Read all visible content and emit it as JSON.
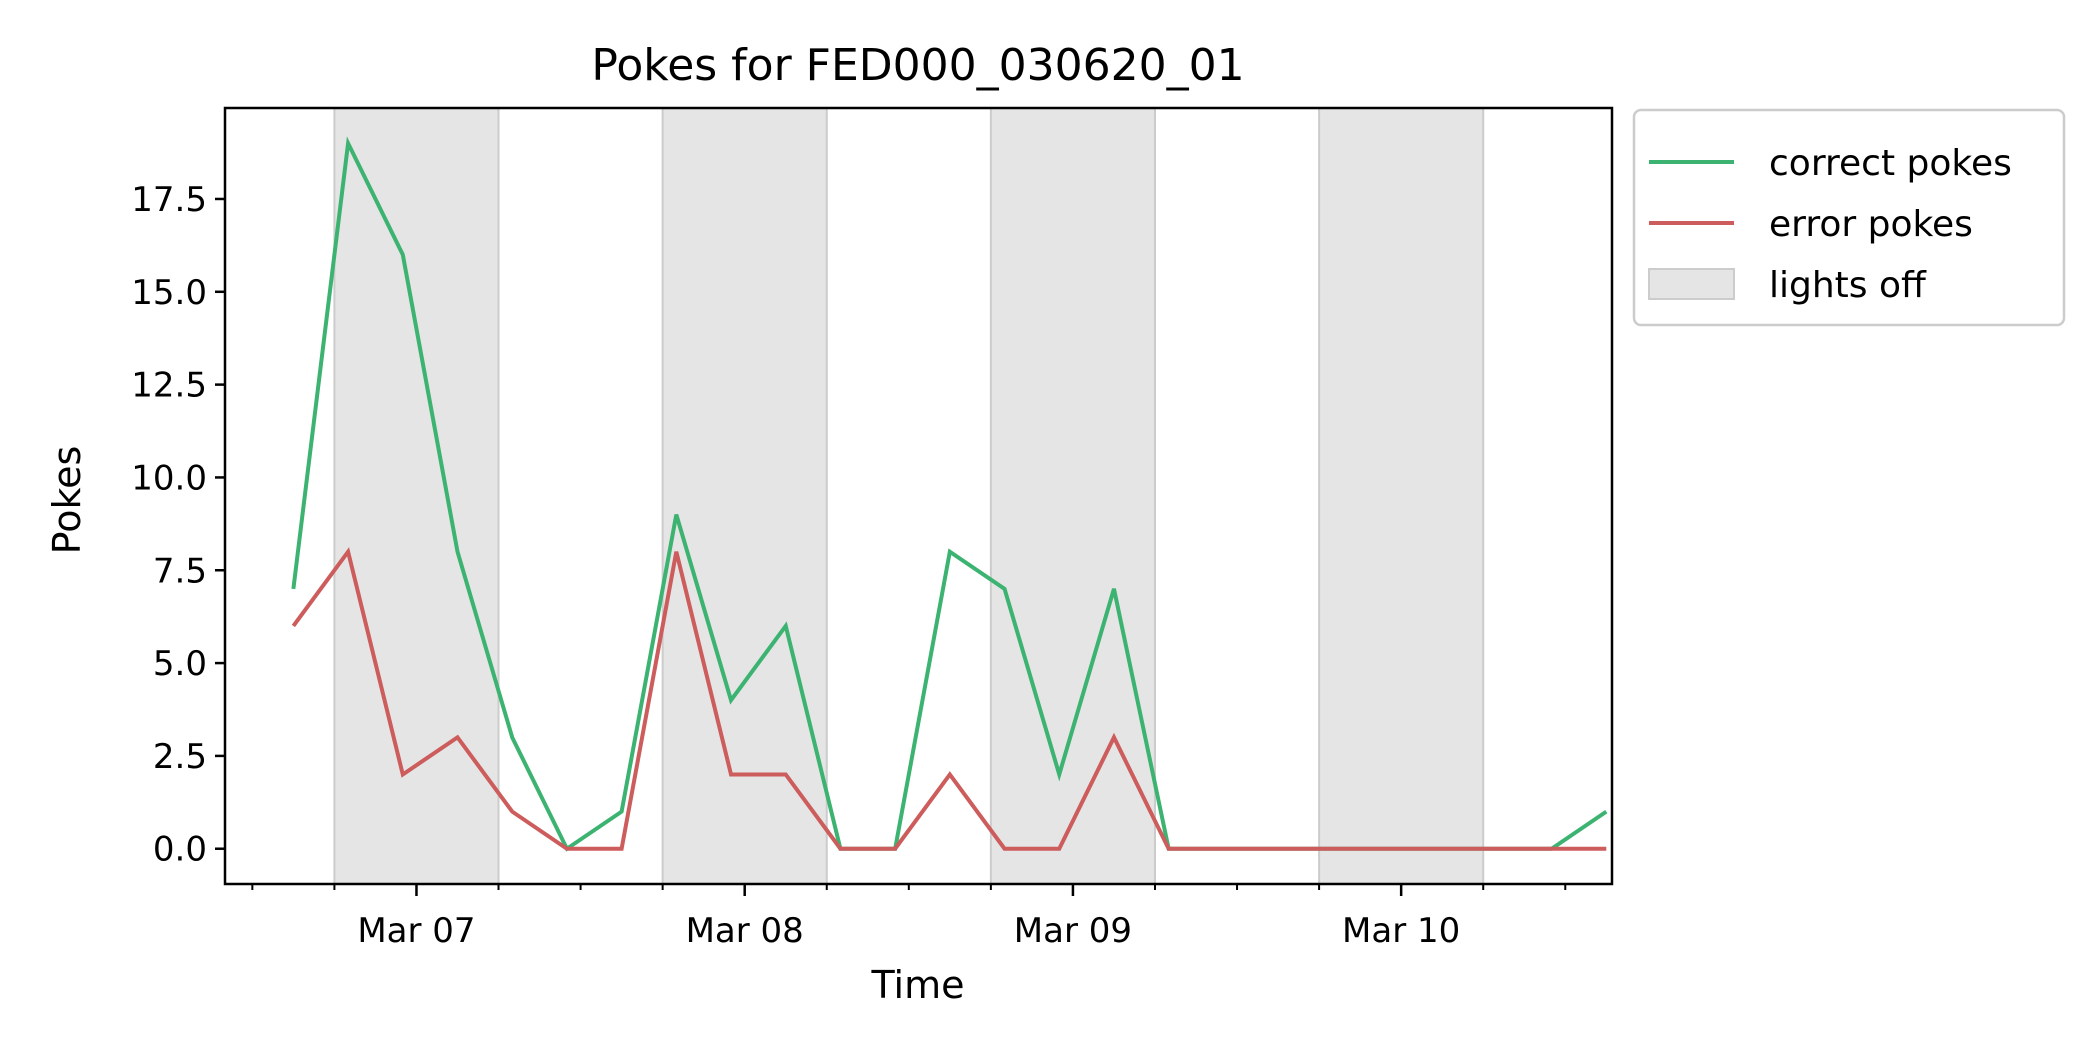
{
  "chart_data": {
    "type": "line",
    "title": "Pokes for FED000_030620_01",
    "xlabel": "Time",
    "ylabel": "Pokes",
    "x": [
      "2020-03-06T15:00",
      "2020-03-06T19:00",
      "2020-03-06T23:00",
      "2020-03-07T03:00",
      "2020-03-07T07:00",
      "2020-03-07T11:00",
      "2020-03-07T15:00",
      "2020-03-07T19:00",
      "2020-03-07T23:00",
      "2020-03-08T03:00",
      "2020-03-08T07:00",
      "2020-03-08T11:00",
      "2020-03-08T15:00",
      "2020-03-08T19:00",
      "2020-03-08T23:00",
      "2020-03-09T03:00",
      "2020-03-09T07:00",
      "2020-03-09T11:00",
      "2020-03-09T15:00",
      "2020-03-09T19:00",
      "2020-03-09T23:00",
      "2020-03-10T03:00",
      "2020-03-10T07:00",
      "2020-03-10T11:00",
      "2020-03-10T15:00"
    ],
    "series": [
      {
        "name": "correct pokes",
        "color": "#3cb371",
        "values": [
          7,
          19,
          16,
          8,
          3,
          0,
          1,
          9,
          4,
          6,
          0,
          0,
          8,
          7,
          2,
          7,
          0,
          0,
          0,
          0,
          0,
          0,
          0,
          0,
          1
        ]
      },
      {
        "name": "error pokes",
        "color": "#cd5c5c",
        "values": [
          6,
          8,
          2,
          3,
          1,
          0,
          0,
          8,
          2,
          2,
          0,
          0,
          2,
          0,
          0,
          3,
          0,
          0,
          0,
          0,
          0,
          0,
          0,
          0,
          0
        ]
      }
    ],
    "shaded_regions": {
      "name": "lights off",
      "color": "#e5e5e5",
      "ranges": [
        [
          "2020-03-06T18:00",
          "2020-03-07T06:00"
        ],
        [
          "2020-03-07T18:00",
          "2020-03-08T06:00"
        ],
        [
          "2020-03-08T18:00",
          "2020-03-09T06:00"
        ],
        [
          "2020-03-09T18:00",
          "2020-03-10T06:00"
        ]
      ]
    },
    "xlim": [
      "2020-03-06T10:00",
      "2020-03-10T15:25"
    ],
    "ylim": [
      -0.95,
      19.95
    ],
    "x_ticks": [
      {
        "value": "2020-03-07T00:00",
        "label": "Mar 07"
      },
      {
        "value": "2020-03-08T00:00",
        "label": "Mar 08"
      },
      {
        "value": "2020-03-09T00:00",
        "label": "Mar 09"
      },
      {
        "value": "2020-03-10T00:00",
        "label": "Mar 10"
      }
    ],
    "x_minor_ticks": [
      "2020-03-06T12:00",
      "2020-03-06T18:00",
      "2020-03-07T06:00",
      "2020-03-07T12:00",
      "2020-03-07T18:00",
      "2020-03-08T06:00",
      "2020-03-08T12:00",
      "2020-03-08T18:00",
      "2020-03-09T06:00",
      "2020-03-09T12:00",
      "2020-03-09T18:00",
      "2020-03-10T06:00",
      "2020-03-10T12:00"
    ],
    "y_ticks": [
      {
        "value": 0,
        "label": "0.0"
      },
      {
        "value": 2.5,
        "label": "2.5"
      },
      {
        "value": 5,
        "label": "5.0"
      },
      {
        "value": 7.5,
        "label": "7.5"
      },
      {
        "value": 10,
        "label": "10.0"
      },
      {
        "value": 12.5,
        "label": "12.5"
      },
      {
        "value": 15,
        "label": "15.0"
      },
      {
        "value": 17.5,
        "label": "17.5"
      }
    ],
    "grid": false,
    "legend": {
      "placement": "outside-top-right",
      "entries": [
        "correct pokes",
        "error pokes",
        "lights off"
      ]
    }
  }
}
